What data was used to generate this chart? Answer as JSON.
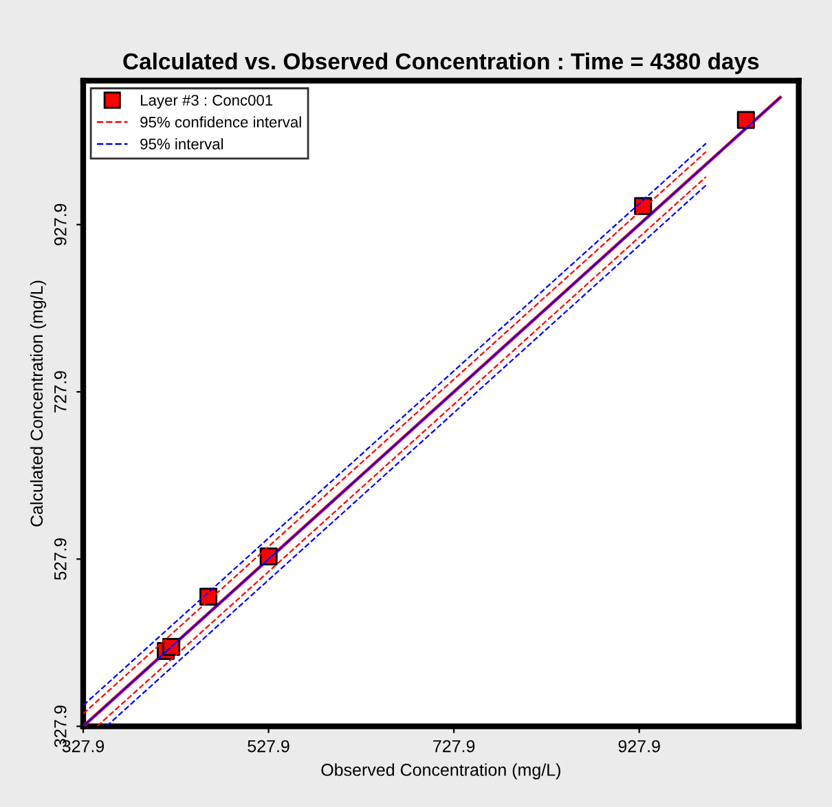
{
  "chart_data": {
    "type": "scatter",
    "title": "Calculated vs. Observed Concentration : Time = 4380 days",
    "xlabel": "Observed Concentration (mg/L)",
    "ylabel": "Calculated Concentration (mg/L)",
    "series": [
      {
        "name": "Layer #3 : Conc001",
        "color": "#ff0000",
        "marker": "square",
        "x": [
          417,
          423,
          463,
          528,
          932,
          1043
        ],
        "values": [
          418,
          423,
          483,
          531,
          950,
          1053
        ]
      },
      {
        "type": "line",
        "color": "#ff0000",
        "line_style": "solid",
        "marker": "none",
        "x": [
          328,
          1080
        ],
        "values": [
          328,
          1080
        ]
      },
      {
        "type": "line",
        "color": "#0000ff",
        "line_style": "solid",
        "marker": "none",
        "x": [
          328,
          1080
        ],
        "values": [
          328,
          1080
        ]
      },
      {
        "name": "95% confidence interval",
        "type": "line",
        "color": "#ff0000",
        "line_style": "dashed",
        "marker": "none",
        "x": [
          328,
          1000
        ],
        "values": [
          343,
          1015
        ]
      },
      {
        "type": "line",
        "color": "#ff0000",
        "line_style": "dashed",
        "marker": "none",
        "x": [
          343,
          1000
        ],
        "values": [
          328,
          985
        ]
      },
      {
        "name": "95% interval",
        "type": "line",
        "color": "#0000ff",
        "line_style": "dashed",
        "marker": "none",
        "x": [
          328,
          1000
        ],
        "values": [
          353,
          1025
        ]
      },
      {
        "type": "line",
        "color": "#0000ff",
        "line_style": "dashed",
        "marker": "none",
        "x": [
          353,
          1000
        ],
        "values": [
          328,
          975
        ]
      }
    ],
    "xlim": [
      327.9,
      1100
    ],
    "ylim": [
      327.9,
      1100
    ],
    "xticks": [
      327.9,
      527.9,
      727.9,
      927.9
    ],
    "yticks": [
      327.9,
      527.9,
      727.9,
      927.9
    ],
    "grid": false,
    "legend": "top left"
  }
}
